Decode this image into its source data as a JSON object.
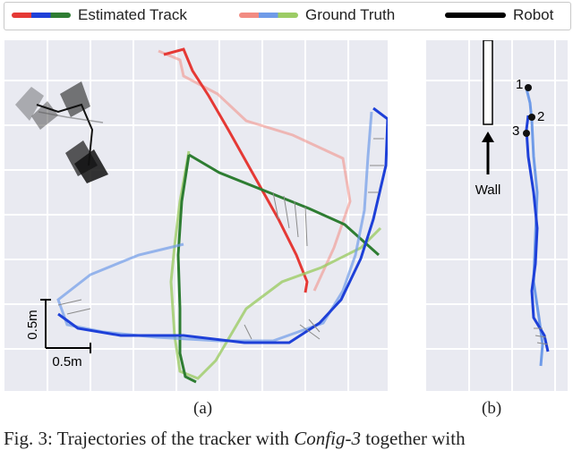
{
  "legend": {
    "items": [
      {
        "label": "Estimated Track",
        "swatch": [
          "#e53935",
          "#1e40d8",
          "#2e7d32"
        ]
      },
      {
        "label": "Ground Truth",
        "swatch": [
          "#f28b82",
          "#6f9be8",
          "#9ccc65"
        ]
      },
      {
        "label": "Robot",
        "swatch": [
          "#000000"
        ]
      }
    ]
  },
  "panel_a": {
    "label": "(a)",
    "scale_y": "0.5m",
    "scale_x": "0.5m"
  },
  "panel_b": {
    "label": "(b)",
    "wall_label": "Wall",
    "markers": [
      "1",
      "2",
      "3"
    ]
  },
  "caption": {
    "prefix": "Fig. 3: Trajectories of the tracker with ",
    "config": "Config-3",
    "suffix": " together with"
  },
  "colors": {
    "red_track": "#e53935",
    "blue_track": "#1e40d8",
    "green_track": "#2e7d32",
    "red_truth": "#f28b82",
    "blue_truth": "#6f9be8",
    "green_truth": "#9ccc65",
    "panel_bg": "#e9eaf1",
    "grid": "#ffffff"
  }
}
